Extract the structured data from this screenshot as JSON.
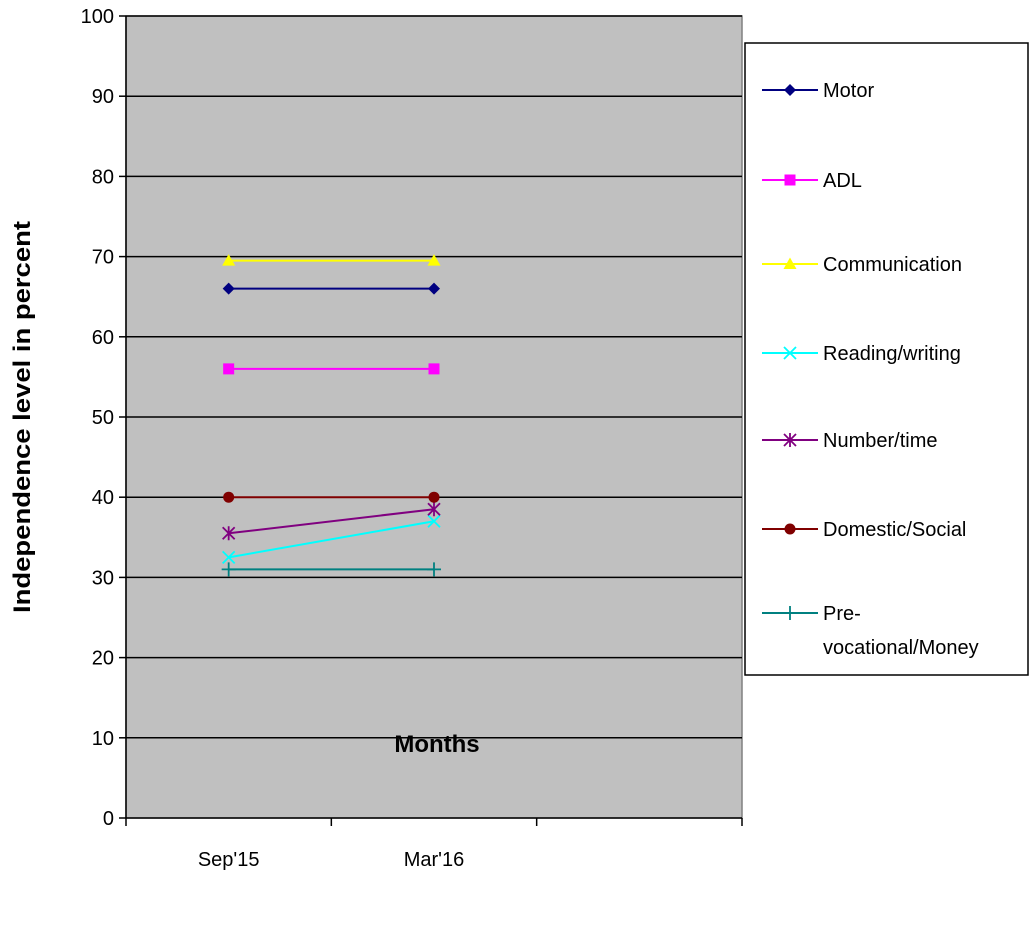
{
  "chart_data": {
    "type": "line",
    "categories": [
      "Sep'15",
      "Mar'16"
    ],
    "xlabel": "Months",
    "ylabel": "Independence level in percent",
    "ylim": [
      0,
      100
    ],
    "yticks": [
      "0",
      "10",
      "20",
      "30",
      "40",
      "50",
      "60",
      "70",
      "80",
      "90",
      "100"
    ],
    "grid": true,
    "plot_background": "#c0c0c0",
    "legend_position": "right",
    "series": [
      {
        "name": "Motor",
        "values": [
          66,
          66
        ],
        "color": "#000080",
        "marker": "diamond"
      },
      {
        "name": "ADL",
        "values": [
          56,
          56
        ],
        "color": "#ff00ff",
        "marker": "square"
      },
      {
        "name": "Communication",
        "values": [
          69.5,
          69.5
        ],
        "color": "#ffff00",
        "marker": "triangle"
      },
      {
        "name": "Reading/writing",
        "values": [
          32.5,
          37
        ],
        "color": "#00ffff",
        "marker": "x"
      },
      {
        "name": "Number/time",
        "values": [
          35.5,
          38.5
        ],
        "color": "#800080",
        "marker": "star"
      },
      {
        "name": "Domestic/Social",
        "values": [
          40,
          40
        ],
        "color": "#800000",
        "marker": "circle"
      },
      {
        "name": "Pre-vocational/Money",
        "legend_lines": [
          "Pre-",
          "vocational/Money"
        ],
        "values": [
          31,
          31
        ],
        "color": "#008080",
        "marker": "plus"
      }
    ]
  }
}
